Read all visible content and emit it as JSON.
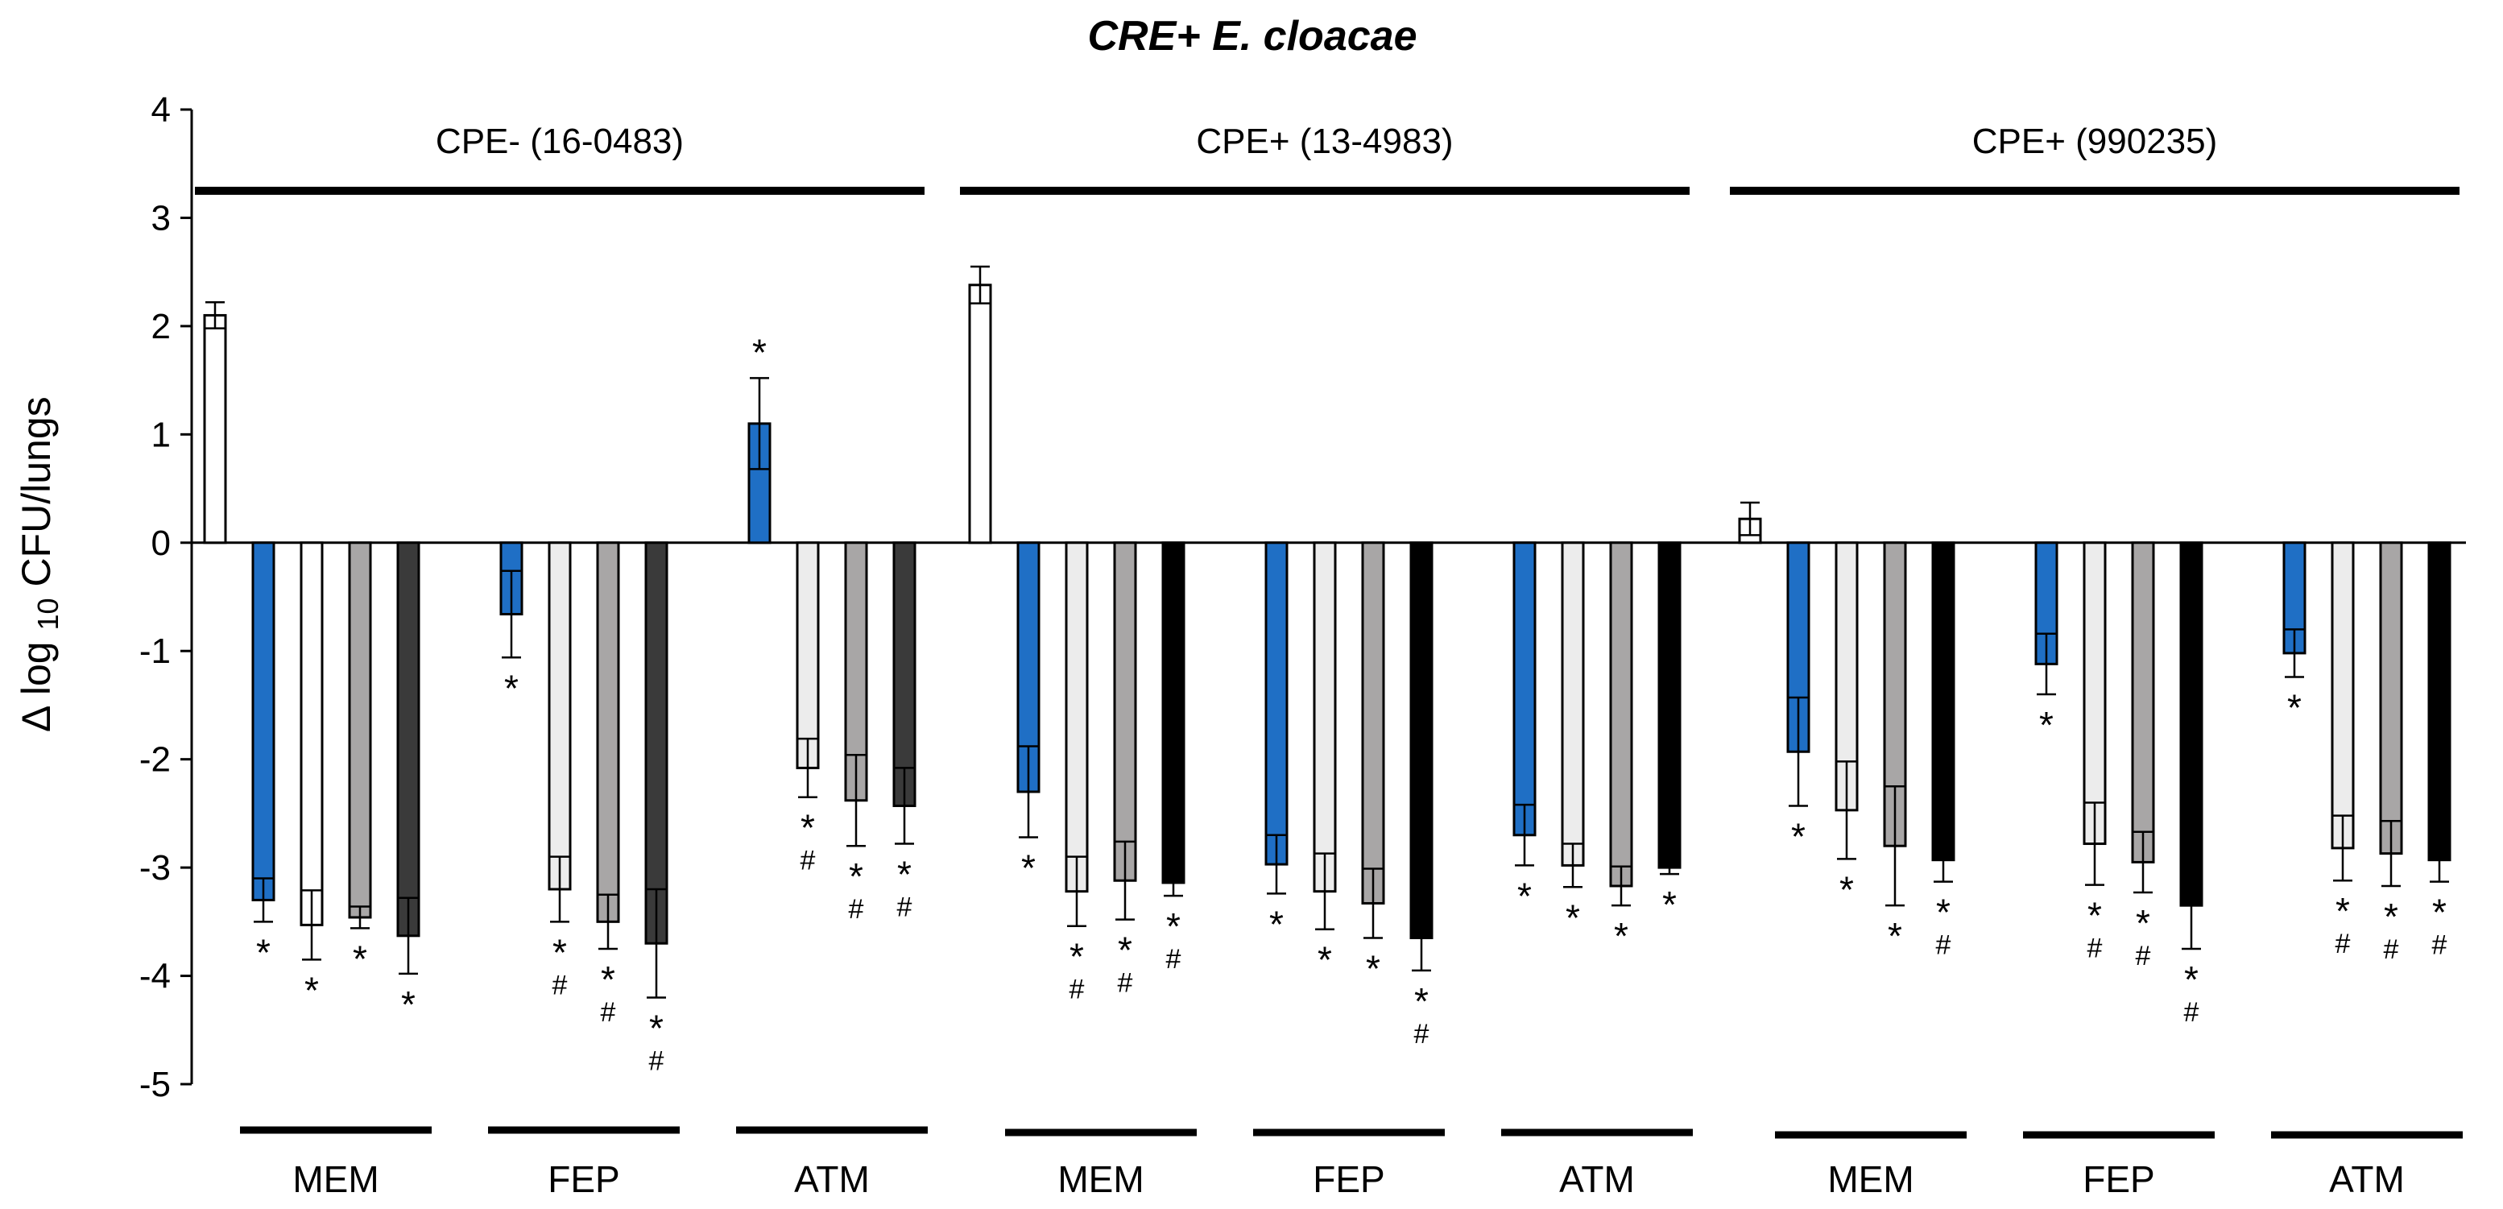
{
  "chart_data": {
    "type": "bar",
    "title": "CRE+ E. cloacae",
    "ylabel": "∆log10 CFU/lungs",
    "ylabel_parts": {
      "prefix": "∆",
      "log": "log",
      "sub": "10",
      "rest": " CFU/lungs"
    },
    "xlabel": "",
    "ylim": [
      -5,
      4
    ],
    "yticks": [
      4,
      3,
      2,
      1,
      0,
      -1,
      -2,
      -3,
      -4,
      -5
    ],
    "ytick_labels": [
      "4",
      "3",
      "2",
      "1",
      "0",
      "-1",
      "-2",
      "-3",
      "-4",
      "-5"
    ],
    "grid": false,
    "colors": {
      "control": "#ffffff",
      "human_exposure": "#1f6fc5",
      "white": "#ffffff",
      "light": "#ececec",
      "gray": "#a8a6a6",
      "dark": "#3a3a3a",
      "black": "#000000",
      "outline": "#000000"
    },
    "strains": [
      {
        "label": "CPE- (16-0483)",
        "control": {
          "value": 2.1,
          "err": 0.12
        },
        "drugs": [
          {
            "name": "MEM",
            "bars": [
              {
                "value": -3.3,
                "err": 0.2,
                "color": "human_exposure",
                "sig": [
                  "*"
                ]
              },
              {
                "value": -3.53,
                "err": 0.32,
                "color": "white",
                "sig": [
                  "*"
                ]
              },
              {
                "value": -3.46,
                "err": 0.1,
                "color": "gray",
                "sig": [
                  "*"
                ]
              },
              {
                "value": -3.63,
                "err": 0.35,
                "color": "dark",
                "sig": [
                  "*"
                ]
              }
            ]
          },
          {
            "name": "FEP",
            "bars": [
              {
                "value": -0.66,
                "err": 0.4,
                "color": "human_exposure",
                "sig": [
                  "*"
                ]
              },
              {
                "value": -3.2,
                "err": 0.3,
                "color": "light",
                "sig": [
                  "*",
                  "#"
                ]
              },
              {
                "value": -3.5,
                "err": 0.25,
                "color": "gray",
                "sig": [
                  "*",
                  "#"
                ]
              },
              {
                "value": -3.7,
                "err": 0.5,
                "color": "dark",
                "sig": [
                  "*",
                  "#"
                ]
              }
            ]
          },
          {
            "name": "ATM",
            "bars": [
              {
                "value": 1.1,
                "err": 0.42,
                "color": "human_exposure",
                "sig": [
                  "*"
                ],
                "sig_above": true
              },
              {
                "value": -2.08,
                "err": 0.27,
                "color": "light",
                "sig": [
                  "*",
                  "#"
                ]
              },
              {
                "value": -2.38,
                "err": 0.42,
                "color": "gray",
                "sig": [
                  "*",
                  "#"
                ]
              },
              {
                "value": -2.43,
                "err": 0.35,
                "color": "dark",
                "sig": [
                  "*",
                  "#"
                ]
              }
            ]
          }
        ]
      },
      {
        "label": "CPE+ (13-4983)",
        "control": {
          "value": 2.38,
          "err": 0.17
        },
        "drugs": [
          {
            "name": "MEM",
            "bars": [
              {
                "value": -2.3,
                "err": 0.42,
                "color": "human_exposure",
                "sig": [
                  "*"
                ]
              },
              {
                "value": -3.22,
                "err": 0.32,
                "color": "light",
                "sig": [
                  "*",
                  "#"
                ]
              },
              {
                "value": -3.12,
                "err": 0.36,
                "color": "gray",
                "sig": [
                  "*",
                  "#"
                ]
              },
              {
                "value": -3.14,
                "err": 0.12,
                "color": "black",
                "sig": [
                  "*",
                  "#"
                ]
              }
            ]
          },
          {
            "name": "FEP",
            "bars": [
              {
                "value": -2.97,
                "err": 0.27,
                "color": "human_exposure",
                "sig": [
                  "*"
                ]
              },
              {
                "value": -3.22,
                "err": 0.35,
                "color": "light",
                "sig": [
                  "*"
                ]
              },
              {
                "value": -3.33,
                "err": 0.32,
                "color": "gray",
                "sig": [
                  "*"
                ]
              },
              {
                "value": -3.65,
                "err": 0.3,
                "color": "black",
                "sig": [
                  "*",
                  "#"
                ]
              }
            ]
          },
          {
            "name": "ATM",
            "bars": [
              {
                "value": -2.7,
                "err": 0.28,
                "color": "human_exposure",
                "sig": [
                  "*"
                ]
              },
              {
                "value": -2.98,
                "err": 0.2,
                "color": "light",
                "sig": [
                  "*"
                ]
              },
              {
                "value": -3.17,
                "err": 0.18,
                "color": "gray",
                "sig": [
                  "*"
                ]
              },
              {
                "value": -3.0,
                "err": 0.06,
                "color": "black",
                "sig": [
                  "*"
                ]
              }
            ]
          }
        ]
      },
      {
        "label": "CPE+ (990235)",
        "control": {
          "value": 0.22,
          "err": 0.15
        },
        "drugs": [
          {
            "name": "MEM",
            "bars": [
              {
                "value": -1.93,
                "err": 0.5,
                "color": "human_exposure",
                "sig": [
                  "*"
                ]
              },
              {
                "value": -2.47,
                "err": 0.45,
                "color": "light",
                "sig": [
                  "*"
                ]
              },
              {
                "value": -2.8,
                "err": 0.55,
                "color": "gray",
                "sig": [
                  "*"
                ]
              },
              {
                "value": -2.93,
                "err": 0.2,
                "color": "black",
                "sig": [
                  "*",
                  "#"
                ]
              }
            ]
          },
          {
            "name": "FEP",
            "bars": [
              {
                "value": -1.12,
                "err": 0.28,
                "color": "human_exposure",
                "sig": [
                  "*"
                ]
              },
              {
                "value": -2.78,
                "err": 0.38,
                "color": "light",
                "sig": [
                  "*",
                  "#"
                ]
              },
              {
                "value": -2.95,
                "err": 0.28,
                "color": "gray",
                "sig": [
                  "*",
                  "#"
                ]
              },
              {
                "value": -3.35,
                "err": 0.4,
                "color": "black",
                "sig": [
                  "*",
                  "#"
                ]
              }
            ]
          },
          {
            "name": "ATM",
            "bars": [
              {
                "value": -1.02,
                "err": 0.22,
                "color": "human_exposure",
                "sig": [
                  "*"
                ]
              },
              {
                "value": -2.82,
                "err": 0.3,
                "color": "light",
                "sig": [
                  "*",
                  "#"
                ]
              },
              {
                "value": -2.87,
                "err": 0.3,
                "color": "gray",
                "sig": [
                  "*",
                  "#"
                ]
              },
              {
                "value": -2.93,
                "err": 0.2,
                "color": "black",
                "sig": [
                  "*",
                  "#"
                ]
              }
            ]
          }
        ]
      }
    ]
  }
}
